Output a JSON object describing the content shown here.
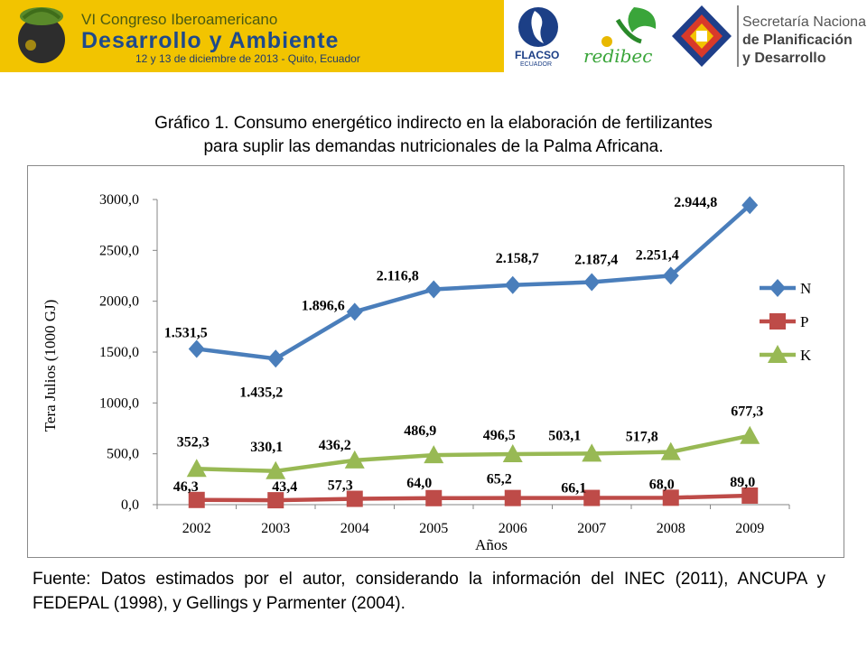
{
  "banner": {
    "event_line1": "VI Congreso Iberoamericano",
    "event_line2": "Desarrollo y Ambiente",
    "event_line3": "12 y 13 de diciembre de 2013 - Quito, Ecuador",
    "flacso_name": "FLACSO",
    "flacso_sub": "ECUADOR",
    "redibec": "redibec",
    "senplades_line1": "Secretaría Nacional",
    "senplades_line2": "de Planificación",
    "senplades_line3": "y Desarrollo"
  },
  "title_line1": "Gráfico 1. Consumo energético indirecto en la elaboración de fertilizantes",
  "title_line2": "para suplir las demandas nutricionales de la Palma Africana.",
  "source_text": "Fuente: Datos estimados por el autor, considerando la información del INEC (2011), ANCUPA y FEDEPAL (1998), y Gellings y Parmenter (2004).",
  "colors": {
    "N": "#4a7ebb",
    "P": "#be4b48",
    "K": "#98b954",
    "banner": "#f2c400"
  },
  "chart_data": {
    "type": "line",
    "xlabel": "Años",
    "ylabel": "Tera Julios (1000 GJ)",
    "x": [
      "2002",
      "2003",
      "2004",
      "2005",
      "2006",
      "2007",
      "2008",
      "2009"
    ],
    "ylim": [
      0,
      3000
    ],
    "yticks": [
      "0,0",
      "500,0",
      "1000,0",
      "1500,0",
      "2000,0",
      "2500,0",
      "3000,0"
    ],
    "legend_position": "right",
    "grid": false,
    "series": [
      {
        "name": "N",
        "marker": "diamond",
        "values": [
          1531.5,
          1435.2,
          1896.6,
          2116.8,
          2158.7,
          2187.4,
          2251.4,
          2944.8
        ],
        "labels": [
          "1.531,5",
          "1.435,2",
          "1.896,6",
          "2.116,8",
          "2.158,7",
          "2.187,4",
          "2.251,4",
          "2.944,8"
        ]
      },
      {
        "name": "P",
        "marker": "square",
        "values": [
          46.3,
          43.4,
          57.3,
          64.0,
          65.2,
          66.1,
          68.0,
          89.0
        ],
        "labels": [
          "46,3",
          "43,4",
          "57,3",
          "64,0",
          "65,2",
          "66,1",
          "68,0",
          "89,0"
        ]
      },
      {
        "name": "K",
        "marker": "triangle",
        "values": [
          352.3,
          330.1,
          436.2,
          486.9,
          496.5,
          503.1,
          517.8,
          677.3
        ],
        "labels": [
          "352,3",
          "330,1",
          "436,2",
          "486,9",
          "496,5",
          "503,1",
          "517,8",
          "677,3"
        ]
      }
    ]
  }
}
